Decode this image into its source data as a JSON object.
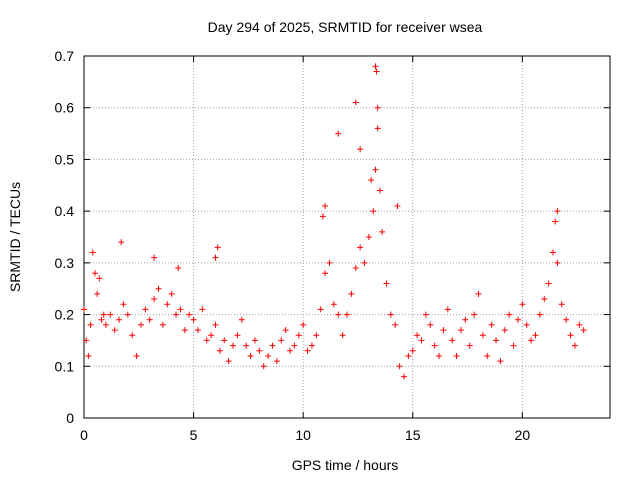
{
  "chart_data": {
    "type": "scatter",
    "title": "Day 294 of 2025, SRMTID for receiver wsea",
    "xlabel": "GPS time / hours",
    "ylabel": "SRMTID / TECUs",
    "xlim": [
      0,
      24
    ],
    "ylim": [
      0,
      0.7
    ],
    "xticks": [
      0,
      5,
      10,
      15,
      20
    ],
    "xtick_labels": [
      "0",
      "5",
      "10",
      "15",
      "20"
    ],
    "yticks": [
      0,
      0.1,
      0.2,
      0.3,
      0.4,
      0.5,
      0.6,
      0.7
    ],
    "ytick_labels": [
      "0",
      "0.1",
      "0.2",
      "0.3",
      "0.4",
      "0.5",
      "0.6",
      "0.7"
    ],
    "grid": true,
    "marker": "+",
    "color": "#ff0000",
    "series": [
      {
        "name": "SRMTID",
        "x": [
          0.0,
          0.1,
          0.2,
          0.3,
          0.4,
          0.5,
          0.6,
          0.7,
          0.8,
          0.9,
          1.0,
          1.2,
          1.4,
          1.6,
          1.8,
          2.0,
          2.2,
          2.4,
          2.6,
          2.8,
          3.0,
          3.2,
          3.4,
          3.6,
          3.8,
          4.0,
          4.2,
          4.4,
          4.6,
          4.8,
          5.0,
          5.2,
          5.4,
          5.6,
          5.8,
          6.0,
          6.2,
          6.4,
          6.6,
          6.8,
          7.0,
          7.2,
          7.4,
          7.6,
          7.8,
          8.0,
          8.2,
          8.4,
          8.6,
          8.8,
          9.0,
          9.2,
          9.4,
          9.6,
          9.8,
          10.0,
          10.2,
          10.4,
          10.6,
          10.8,
          11.0,
          11.2,
          11.4,
          11.6,
          11.8,
          12.0,
          12.2,
          12.4,
          12.6,
          12.8,
          13.0,
          13.1,
          13.2,
          13.3,
          13.4,
          13.5,
          13.6,
          13.8,
          14.0,
          14.2,
          14.4,
          14.6,
          14.8,
          15.0,
          15.2,
          15.4,
          15.6,
          15.8,
          16.0,
          16.2,
          16.4,
          16.6,
          16.8,
          17.0,
          17.2,
          17.4,
          17.6,
          17.8,
          18.0,
          18.2,
          18.4,
          18.6,
          18.8,
          19.0,
          19.2,
          19.4,
          19.6,
          19.8,
          20.0,
          20.2,
          20.4,
          20.6,
          20.8,
          21.0,
          21.2,
          21.4,
          21.6,
          21.8,
          22.0,
          22.2,
          22.4,
          22.6,
          22.8,
          1.7,
          3.2,
          4.3,
          6.1,
          11.0,
          11.6,
          12.4,
          12.6,
          13.3,
          13.35,
          13.4,
          21.6,
          21.5,
          14.3,
          10.9,
          6.0
        ],
        "y": [
          0.21,
          0.15,
          0.12,
          0.18,
          0.32,
          0.28,
          0.24,
          0.27,
          0.19,
          0.2,
          0.18,
          0.2,
          0.17,
          0.19,
          0.22,
          0.2,
          0.16,
          0.12,
          0.18,
          0.21,
          0.19,
          0.23,
          0.25,
          0.18,
          0.22,
          0.24,
          0.2,
          0.21,
          0.17,
          0.2,
          0.19,
          0.17,
          0.21,
          0.15,
          0.16,
          0.18,
          0.13,
          0.15,
          0.11,
          0.14,
          0.16,
          0.19,
          0.14,
          0.12,
          0.15,
          0.13,
          0.1,
          0.12,
          0.14,
          0.11,
          0.15,
          0.17,
          0.13,
          0.14,
          0.16,
          0.18,
          0.13,
          0.14,
          0.16,
          0.21,
          0.28,
          0.3,
          0.22,
          0.2,
          0.16,
          0.2,
          0.24,
          0.29,
          0.33,
          0.3,
          0.35,
          0.46,
          0.4,
          0.48,
          0.56,
          0.44,
          0.36,
          0.26,
          0.2,
          0.18,
          0.1,
          0.08,
          0.12,
          0.13,
          0.16,
          0.15,
          0.2,
          0.18,
          0.14,
          0.12,
          0.17,
          0.21,
          0.15,
          0.12,
          0.17,
          0.19,
          0.14,
          0.2,
          0.24,
          0.16,
          0.12,
          0.18,
          0.15,
          0.11,
          0.17,
          0.2,
          0.14,
          0.19,
          0.22,
          0.18,
          0.15,
          0.16,
          0.2,
          0.23,
          0.26,
          0.32,
          0.3,
          0.22,
          0.19,
          0.16,
          0.14,
          0.18,
          0.17,
          0.34,
          0.31,
          0.29,
          0.33,
          0.41,
          0.55,
          0.61,
          0.52,
          0.68,
          0.67,
          0.6,
          0.4,
          0.38,
          0.41,
          0.39,
          0.31
        ]
      }
    ]
  }
}
